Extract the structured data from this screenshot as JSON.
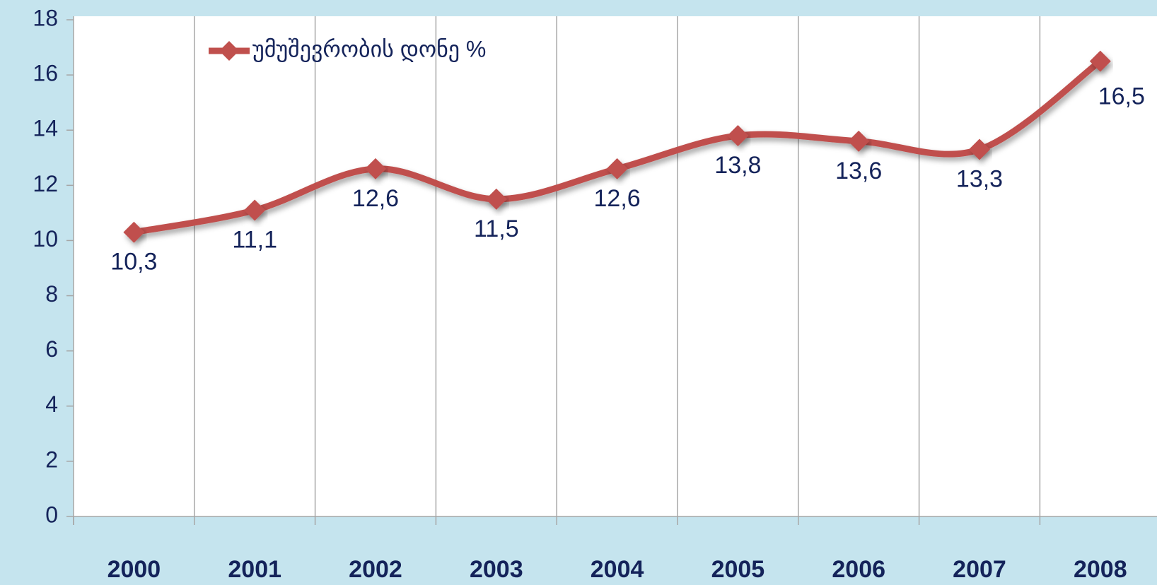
{
  "chart_data": {
    "type": "line",
    "categories": [
      "2000",
      "2001",
      "2002",
      "2003",
      "2004",
      "2005",
      "2006",
      "2007",
      "2008"
    ],
    "series": [
      {
        "name": "უმუშევრობის დონე %",
        "color": "#c0504d",
        "values": [
          10.3,
          11.1,
          12.6,
          11.5,
          12.6,
          13.8,
          13.6,
          13.3,
          16.5
        ],
        "value_labels": [
          "10,3",
          "11,1",
          "12,6",
          "11,5",
          "12,6",
          "13,8",
          "13,6",
          "13,3",
          "16,5"
        ]
      }
    ],
    "ylim": [
      0,
      18
    ],
    "yticks": [
      0,
      2,
      4,
      6,
      8,
      10,
      12,
      14,
      16,
      18
    ],
    "grid": "x",
    "legend": "top-left"
  }
}
